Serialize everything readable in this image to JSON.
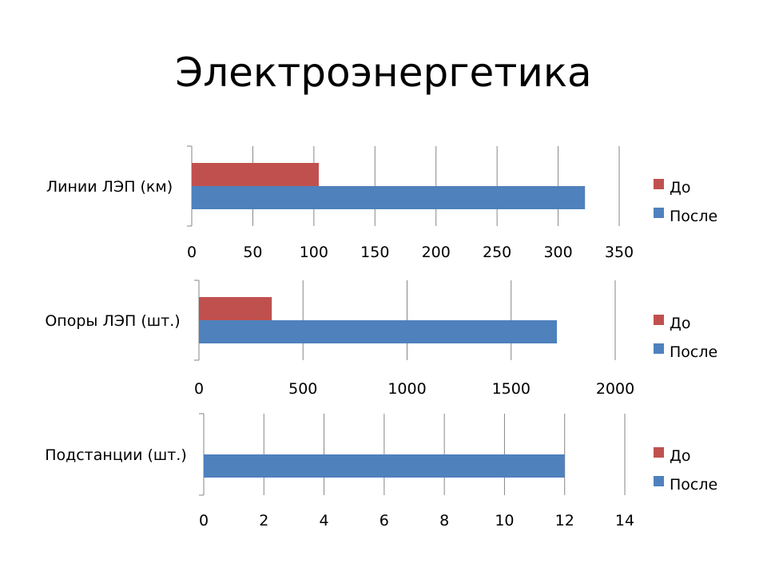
{
  "slide": {
    "title": "Электроэнергетика"
  },
  "chart_data": [
    {
      "type": "bar",
      "orientation": "horizontal",
      "categories": [
        "Линии ЛЭП (км)"
      ],
      "series": [
        {
          "name": "До",
          "values": [
            104
          ],
          "color": "#C0504D"
        },
        {
          "name": "После",
          "values": [
            322
          ],
          "color": "#4F81BD"
        }
      ],
      "xlim": [
        0,
        350
      ],
      "ticks": [
        0,
        50,
        100,
        150,
        200,
        250,
        300,
        350
      ],
      "grid": true,
      "legend": "right"
    },
    {
      "type": "bar",
      "orientation": "horizontal",
      "categories": [
        "Опоры ЛЭП (шт.)"
      ],
      "series": [
        {
          "name": "До",
          "values": [
            350
          ],
          "color": "#C0504D"
        },
        {
          "name": "После",
          "values": [
            1720
          ],
          "color": "#4F81BD"
        }
      ],
      "xlim": [
        0,
        2000
      ],
      "ticks": [
        0,
        500,
        1000,
        1500,
        2000
      ],
      "grid": true,
      "legend": "right"
    },
    {
      "type": "bar",
      "orientation": "horizontal",
      "categories": [
        "Подстанции (шт.)"
      ],
      "series": [
        {
          "name": "До",
          "values": [
            0
          ],
          "color": "#C0504D"
        },
        {
          "name": "После",
          "values": [
            12
          ],
          "color": "#4F81BD"
        }
      ],
      "xlim": [
        0,
        14
      ],
      "ticks": [
        0,
        2,
        4,
        6,
        8,
        10,
        12,
        14
      ],
      "grid": true,
      "legend": "right"
    }
  ]
}
